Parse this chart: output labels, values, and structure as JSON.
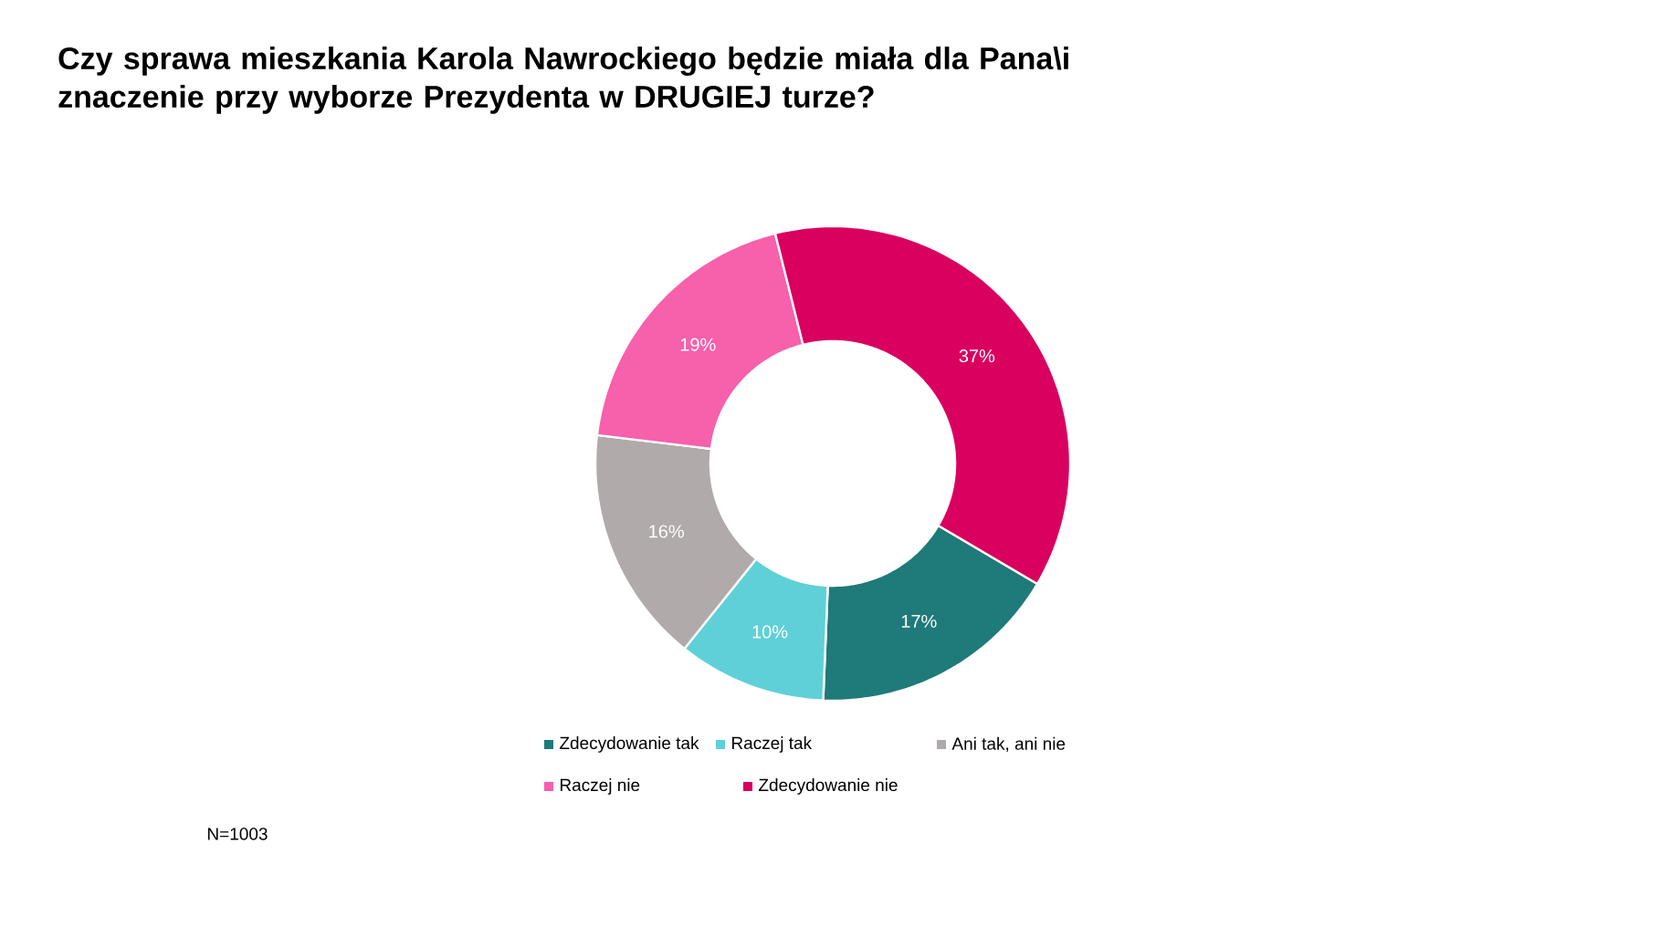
{
  "chart_data": {
    "type": "donut",
    "title": "Czy sprawa mieszkania Karola Nawrockiego będzie miała dla Pana\\i znaczenie przy wyborze Prezydenta w DRUGIEJ turze?",
    "categories": [
      "Zdecydowanie tak",
      "Raczej tak",
      "Ani tak, ani nie",
      "Raczej nie",
      "Zdecydowanie nie"
    ],
    "values": [
      17,
      10,
      16,
      19,
      37
    ],
    "colors": [
      "#1f7a7a",
      "#5fd0d8",
      "#b0aaaa",
      "#f760ab",
      "#d9005f"
    ],
    "value_labels": [
      "17%",
      "10%",
      "16%",
      "19%",
      "37%"
    ],
    "legend": "bottom",
    "annotations": [
      "N=1003"
    ]
  }
}
